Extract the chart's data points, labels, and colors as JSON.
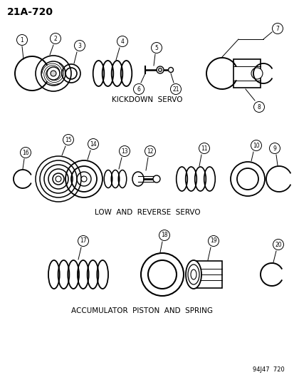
{
  "title": "21A-720",
  "background_color": "#ffffff",
  "text_color": "#000000",
  "section1_label": "KICKDOWN  SERVO",
  "section2_label": "LOW  AND  REVERSE  SERVO",
  "section3_label": "ACCUMULATOR  PISTON  AND  SPRING",
  "footnote": "94J47  720"
}
